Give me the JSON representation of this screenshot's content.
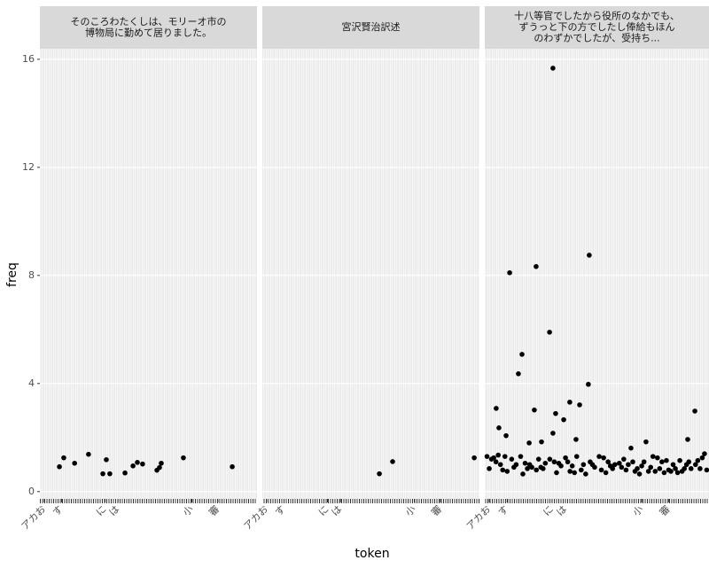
{
  "chart_data": [
    {
      "type": "scatter",
      "title": [
        "そのころわたくしは、モリーオ市の",
        "博物局に勤めて居りました。"
      ],
      "xlabel": "token",
      "ylabel": "freq",
      "color": "#000000",
      "x": [
        9,
        11,
        16,
        22.4,
        29,
        30.6,
        32.2,
        39.2,
        42.9,
        44.9,
        47.3,
        53.9,
        55.1,
        55.9,
        66.1,
        88.6
      ],
      "y": [
        0.92,
        1.25,
        1.05,
        1.38,
        0.66,
        1.18,
        0.66,
        0.69,
        0.95,
        1.08,
        1.02,
        0.79,
        0.89,
        1.05,
        1.25,
        0.92
      ],
      "xlim": [
        0,
        100
      ],
      "ylim": [
        -0.27,
        16.39
      ],
      "yticks": [
        0,
        4,
        8,
        12,
        16
      ],
      "xticks": [
        {
          "value": 2,
          "label": "アカお"
        },
        {
          "value": 10,
          "label": "す"
        },
        {
          "value": 30,
          "label": "に"
        },
        {
          "value": 36,
          "label": "は"
        },
        {
          "value": 70,
          "label": "小"
        },
        {
          "value": 82,
          "label": "審"
        }
      ]
    },
    {
      "type": "scatter",
      "title": [
        "宮沢賢治訳述"
      ],
      "color": "#000000",
      "x": [
        53.9,
        60,
        97.6
      ],
      "y": [
        0.66,
        1.11,
        1.25
      ],
      "xlim": [
        0,
        100
      ],
      "ylim": [
        -0.27,
        16.39
      ],
      "yticks": [
        0,
        4,
        8,
        12,
        16
      ],
      "xticks": [
        {
          "value": 2,
          "label": "アカお"
        },
        {
          "value": 10,
          "label": "す"
        },
        {
          "value": 30,
          "label": "に"
        },
        {
          "value": 36,
          "label": "は"
        },
        {
          "value": 70,
          "label": "小"
        },
        {
          "value": 82,
          "label": "審"
        }
      ]
    },
    {
      "type": "scatter",
      "title": [
        "十八等官でしたから役所のなかでも、",
        "ずうっと下の方でしたし俸給もほん",
        "のわずかでしたが、受持ち..."
      ],
      "color": "#000000",
      "x": [
        30.4,
        11.1,
        22.9,
        46.6,
        28.9,
        16.6,
        15,
        46.2,
        5.1,
        22.1,
        37.9,
        42.3,
        31.6,
        35.2,
        93.7,
        6.3,
        9.5,
        30.4,
        40.7,
        90.5,
        19.8,
        25.3,
        71.9,
        65.2,
        1,
        2,
        3,
        4,
        5,
        6,
        7,
        8,
        9,
        10,
        12,
        13,
        14,
        16,
        17,
        18,
        19,
        20,
        21,
        23,
        24,
        25,
        26,
        27,
        29,
        31,
        32,
        33,
        34,
        36,
        37,
        38,
        39,
        40,
        41,
        43,
        44,
        45,
        47,
        48,
        49,
        51,
        52,
        53,
        54,
        55,
        56,
        57,
        58,
        60,
        61,
        62,
        63,
        64,
        66,
        67,
        68,
        69,
        70,
        71,
        73,
        74,
        75,
        76,
        77,
        78,
        79,
        80,
        81,
        82,
        83,
        84,
        85,
        86,
        87,
        88,
        89,
        90,
        91,
        92,
        94,
        95,
        96,
        97,
        98,
        99
      ],
      "y": [
        15.67,
        8.1,
        8.33,
        8.75,
        5.9,
        5.08,
        4.36,
        3.97,
        3.08,
        3.02,
        3.31,
        3.21,
        2.89,
        2.66,
        2.98,
        2.36,
        2.07,
        2.16,
        1.93,
        1.93,
        1.8,
        1.84,
        1.84,
        1.61,
        1.3,
        0.85,
        1.2,
        1.25,
        1.1,
        1.35,
        1.0,
        0.8,
        1.3,
        0.75,
        1.2,
        0.9,
        1.0,
        1.3,
        0.65,
        1.05,
        0.85,
        1.0,
        0.9,
        0.8,
        1.2,
        0.9,
        0.85,
        1.05,
        1.2,
        1.1,
        0.7,
        1.05,
        0.95,
        1.25,
        1.1,
        0.75,
        0.95,
        0.7,
        1.3,
        0.8,
        1.0,
        0.65,
        1.1,
        1.0,
        0.9,
        1.3,
        0.8,
        1.25,
        0.7,
        1.1,
        0.95,
        0.85,
        1.0,
        1.05,
        0.9,
        1.2,
        0.8,
        1.0,
        1.1,
        0.75,
        0.85,
        0.65,
        0.95,
        1.1,
        0.75,
        0.9,
        1.3,
        0.75,
        1.25,
        0.85,
        1.1,
        0.7,
        1.15,
        0.8,
        0.75,
        1.0,
        0.85,
        0.7,
        1.15,
        0.75,
        0.85,
        1.0,
        1.1,
        0.85,
        1.0,
        1.15,
        0.85,
        1.25,
        1.4,
        0.8
      ],
      "xlim": [
        0,
        100
      ],
      "ylim": [
        -0.27,
        16.39
      ],
      "yticks": [
        0,
        4,
        8,
        12,
        16
      ],
      "xticks": [
        {
          "value": 2,
          "label": "アカお"
        },
        {
          "value": 10,
          "label": "す"
        },
        {
          "value": 30,
          "label": "に"
        },
        {
          "value": 36,
          "label": "は"
        },
        {
          "value": 70,
          "label": "小"
        },
        {
          "value": 82,
          "label": "審"
        }
      ]
    }
  ]
}
